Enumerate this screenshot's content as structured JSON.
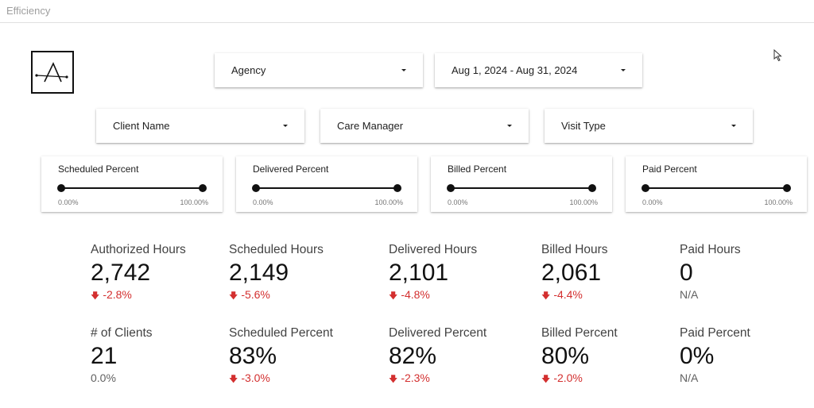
{
  "window": {
    "title": "Efficiency"
  },
  "filters": {
    "agency": "Agency",
    "date_range": "Aug 1, 2024 - Aug 31, 2024",
    "client_name": "Client Name",
    "care_manager": "Care Manager",
    "visit_type": "Visit Type"
  },
  "sliders": [
    {
      "label": "Scheduled Percent",
      "min": "0.00%",
      "max": "100.00%"
    },
    {
      "label": "Delivered Percent",
      "min": "0.00%",
      "max": "100.00%"
    },
    {
      "label": "Billed Percent",
      "min": "0.00%",
      "max": "100.00%"
    },
    {
      "label": "Paid Percent",
      "min": "0.00%",
      "max": "100.00%"
    }
  ],
  "kpis_row1": [
    {
      "label": "Authorized Hours",
      "value": "2,742",
      "delta": "-2.8%",
      "trend": "down"
    },
    {
      "label": "Scheduled Hours",
      "value": "2,149",
      "delta": "-5.6%",
      "trend": "down"
    },
    {
      "label": "Delivered Hours",
      "value": "2,101",
      "delta": "-4.8%",
      "trend": "down"
    },
    {
      "label": "Billed Hours",
      "value": "2,061",
      "delta": "-4.4%",
      "trend": "down"
    },
    {
      "label": "Paid Hours",
      "value": "0",
      "delta": "N/A",
      "trend": "none"
    }
  ],
  "kpis_row2": [
    {
      "label": "# of Clients",
      "value": "21",
      "delta": "0.0%",
      "trend": "none"
    },
    {
      "label": "Scheduled Percent",
      "value": "83%",
      "delta": "-3.0%",
      "trend": "down"
    },
    {
      "label": "Delivered Percent",
      "value": "82%",
      "delta": "-2.3%",
      "trend": "down"
    },
    {
      "label": "Billed Percent",
      "value": "80%",
      "delta": "-2.0%",
      "trend": "down"
    },
    {
      "label": "Paid Percent",
      "value": "0%",
      "delta": "N/A",
      "trend": "none"
    }
  ],
  "colors": {
    "negative": "#d32f2f",
    "neutral": "#616161"
  },
  "icons": {
    "down_arrow": "arrow-down-icon",
    "dropdown": "caret-down-icon"
  }
}
